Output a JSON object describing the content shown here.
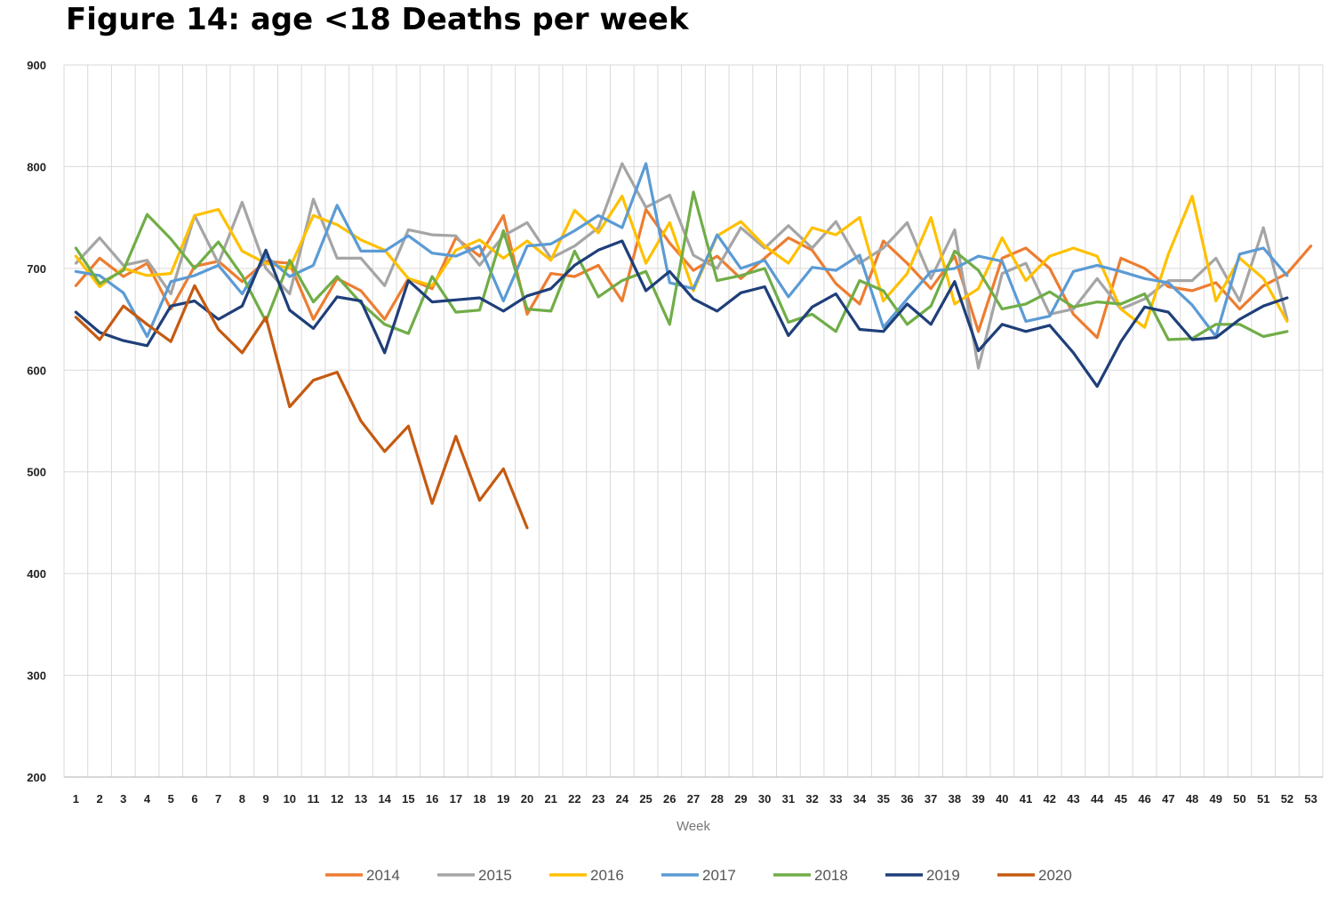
{
  "chart_data": {
    "type": "line",
    "title": "Figure 14: age <18 Deaths per week",
    "xlabel": "Week",
    "ylabel": "",
    "ylim": [
      200,
      900
    ],
    "yticks": [
      200,
      300,
      400,
      500,
      600,
      700,
      800,
      900
    ],
    "x": [
      1,
      2,
      3,
      4,
      5,
      6,
      7,
      8,
      9,
      10,
      11,
      12,
      13,
      14,
      15,
      16,
      17,
      18,
      19,
      20,
      21,
      22,
      23,
      24,
      25,
      26,
      27,
      28,
      29,
      30,
      31,
      32,
      33,
      34,
      35,
      36,
      37,
      38,
      39,
      40,
      41,
      42,
      43,
      44,
      45,
      46,
      47,
      48,
      49,
      50,
      51,
      52,
      53
    ],
    "grid": true,
    "legend_position": "bottom",
    "series": [
      {
        "name": "2014",
        "color": "#ED7D31",
        "values": [
          683,
          710,
          692,
          705,
          660,
          702,
          707,
          687,
          707,
          705,
          650,
          690,
          678,
          650,
          690,
          680,
          730,
          712,
          752,
          655,
          695,
          692,
          703,
          668,
          758,
          725,
          698,
          712,
          690,
          710,
          730,
          718,
          685,
          665,
          727,
          705,
          680,
          712,
          638,
          710,
          720,
          700,
          655,
          632,
          710,
          700,
          682,
          678,
          686,
          660,
          683,
          695,
          722
        ]
      },
      {
        "name": "2015",
        "color": "#A5A5A5",
        "values": [
          705,
          730,
          703,
          708,
          675,
          752,
          705,
          765,
          700,
          675,
          768,
          710,
          710,
          683,
          738,
          733,
          732,
          703,
          732,
          745,
          710,
          722,
          740,
          803,
          760,
          772,
          713,
          700,
          740,
          720,
          742,
          720,
          746,
          705,
          720,
          745,
          690,
          738,
          602,
          695,
          705,
          655,
          660,
          690,
          660,
          670,
          688,
          688,
          710,
          668,
          740,
          650,
          null
        ]
      },
      {
        "name": "2016",
        "color": "#FFC000",
        "values": [
          712,
          682,
          700,
          693,
          695,
          752,
          758,
          717,
          705,
          700,
          752,
          743,
          728,
          718,
          690,
          683,
          718,
          728,
          710,
          727,
          708,
          757,
          735,
          771,
          705,
          745,
          678,
          732,
          746,
          722,
          705,
          740,
          733,
          750,
          668,
          695,
          750,
          665,
          680,
          730,
          688,
          712,
          720,
          712,
          660,
          642,
          714,
          771,
          668,
          710,
          690,
          648,
          null
        ]
      },
      {
        "name": "2017",
        "color": "#5B9BD5",
        "values": [
          697,
          693,
          676,
          633,
          687,
          693,
          703,
          675,
          712,
          692,
          703,
          762,
          717,
          717,
          732,
          715,
          712,
          722,
          668,
          722,
          724,
          737,
          752,
          740,
          803,
          686,
          680,
          733,
          700,
          708,
          672,
          701,
          698,
          713,
          642,
          670,
          697,
          700,
          712,
          707,
          648,
          653,
          697,
          703,
          697,
          690,
          686,
          664,
          633,
          714,
          720,
          693,
          null
        ]
      },
      {
        "name": "2018",
        "color": "#70AD47",
        "values": [
          720,
          685,
          698,
          753,
          729,
          700,
          726,
          693,
          648,
          708,
          667,
          692,
          666,
          645,
          636,
          692,
          657,
          659,
          737,
          660,
          658,
          717,
          672,
          688,
          697,
          645,
          775,
          688,
          693,
          700,
          647,
          655,
          638,
          688,
          678,
          645,
          663,
          717,
          698,
          660,
          665,
          677,
          662,
          667,
          665,
          675,
          630,
          631,
          645,
          645,
          633,
          638,
          null
        ]
      },
      {
        "name": "2019",
        "color": "#1F3F7A",
        "values": [
          657,
          637,
          629,
          624,
          663,
          668,
          650,
          663,
          718,
          659,
          641,
          672,
          668,
          617,
          688,
          667,
          669,
          671,
          658,
          673,
          680,
          703,
          718,
          727,
          678,
          697,
          670,
          658,
          676,
          682,
          634,
          662,
          675,
          640,
          638,
          665,
          645,
          687,
          619,
          645,
          638,
          644,
          617,
          584,
          628,
          662,
          657,
          630,
          632,
          650,
          663,
          671,
          null
        ]
      },
      {
        "name": "2020",
        "color": "#C55A11",
        "values": [
          652,
          630,
          663,
          645,
          628,
          683,
          640,
          617,
          652,
          564,
          590,
          598,
          550,
          520,
          545,
          469,
          535,
          472,
          503,
          445,
          null,
          null,
          null,
          null,
          null,
          null,
          null,
          null,
          null,
          null,
          null,
          null,
          null,
          null,
          null,
          null,
          null,
          null,
          null,
          null,
          null,
          null,
          null,
          null,
          null,
          null,
          null,
          null,
          null,
          null,
          null,
          null,
          null
        ]
      }
    ]
  }
}
